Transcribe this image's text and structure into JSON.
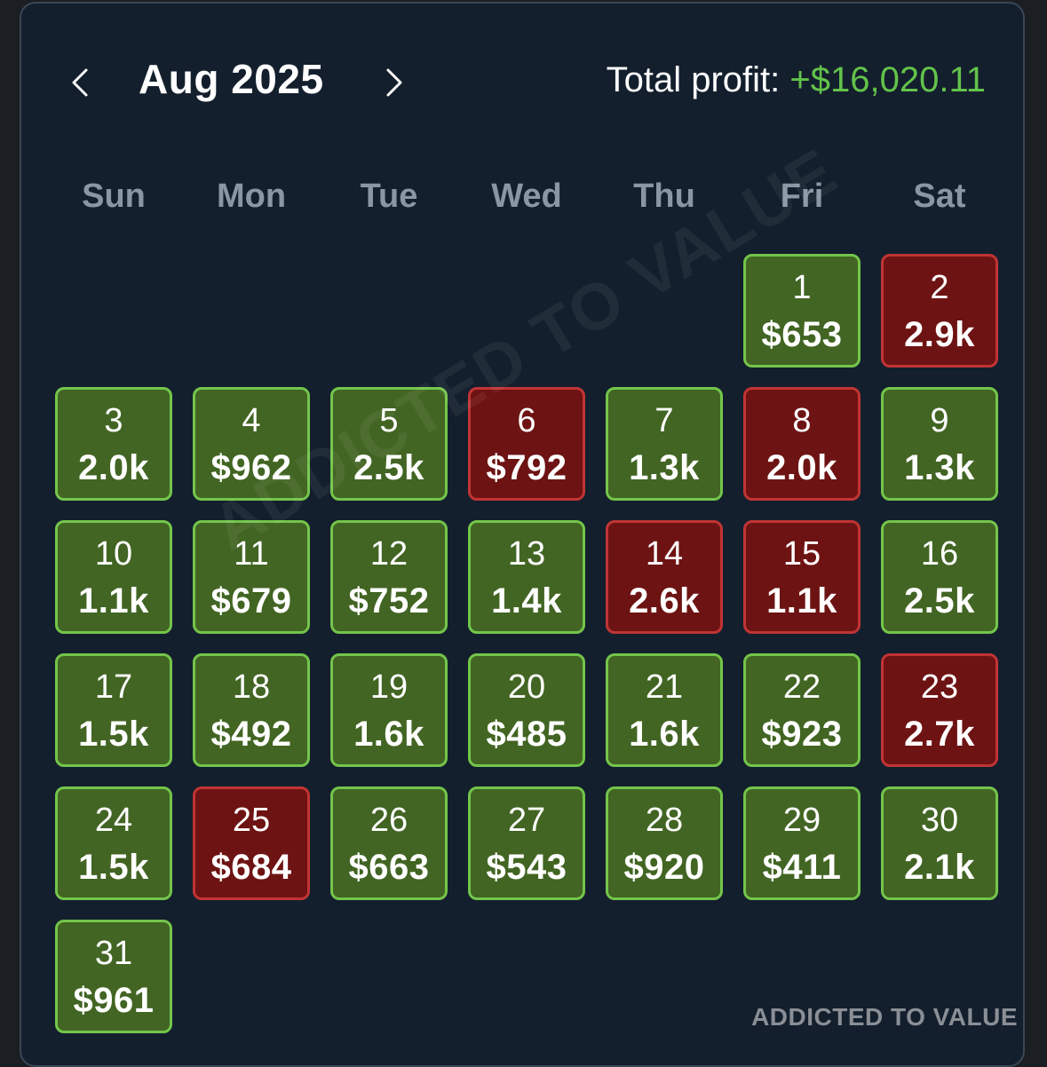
{
  "header": {
    "month_label": "Aug 2025",
    "total_label": "Total profit:",
    "total_value": "+$16,020.11"
  },
  "weekdays": [
    "Sun",
    "Mon",
    "Tue",
    "Wed",
    "Thu",
    "Fri",
    "Sat"
  ],
  "calendar": {
    "start_weekday": 5,
    "days": [
      {
        "day": "1",
        "value": "$653",
        "status": "profit"
      },
      {
        "day": "2",
        "value": "2.9k",
        "status": "loss"
      },
      {
        "day": "3",
        "value": "2.0k",
        "status": "profit"
      },
      {
        "day": "4",
        "value": "$962",
        "status": "profit"
      },
      {
        "day": "5",
        "value": "2.5k",
        "status": "profit"
      },
      {
        "day": "6",
        "value": "$792",
        "status": "loss"
      },
      {
        "day": "7",
        "value": "1.3k",
        "status": "profit"
      },
      {
        "day": "8",
        "value": "2.0k",
        "status": "loss"
      },
      {
        "day": "9",
        "value": "1.3k",
        "status": "profit"
      },
      {
        "day": "10",
        "value": "1.1k",
        "status": "profit"
      },
      {
        "day": "11",
        "value": "$679",
        "status": "profit"
      },
      {
        "day": "12",
        "value": "$752",
        "status": "profit"
      },
      {
        "day": "13",
        "value": "1.4k",
        "status": "profit"
      },
      {
        "day": "14",
        "value": "2.6k",
        "status": "loss"
      },
      {
        "day": "15",
        "value": "1.1k",
        "status": "loss"
      },
      {
        "day": "16",
        "value": "2.5k",
        "status": "profit"
      },
      {
        "day": "17",
        "value": "1.5k",
        "status": "profit"
      },
      {
        "day": "18",
        "value": "$492",
        "status": "profit"
      },
      {
        "day": "19",
        "value": "1.6k",
        "status": "profit"
      },
      {
        "day": "20",
        "value": "$485",
        "status": "profit"
      },
      {
        "day": "21",
        "value": "1.6k",
        "status": "profit"
      },
      {
        "day": "22",
        "value": "$923",
        "status": "profit"
      },
      {
        "day": "23",
        "value": "2.7k",
        "status": "loss"
      },
      {
        "day": "24",
        "value": "1.5k",
        "status": "profit"
      },
      {
        "day": "25",
        "value": "$684",
        "status": "loss"
      },
      {
        "day": "26",
        "value": "$663",
        "status": "profit"
      },
      {
        "day": "27",
        "value": "$543",
        "status": "profit"
      },
      {
        "day": "28",
        "value": "$920",
        "status": "profit"
      },
      {
        "day": "29",
        "value": "$411",
        "status": "profit"
      },
      {
        "day": "30",
        "value": "2.1k",
        "status": "profit"
      },
      {
        "day": "31",
        "value": "$961",
        "status": "profit"
      }
    ]
  },
  "watermark": "ADDICTED TO VALUE",
  "brand": "ADDICTED TO VALUE",
  "icons": {
    "prev": "chevron-left-icon",
    "next": "chevron-right-icon"
  },
  "colors": {
    "profit_fill": "#426523",
    "profit_border": "#73c54a",
    "loss_fill": "#6e1313",
    "loss_border": "#c13434",
    "total_value": "#63c34a"
  }
}
